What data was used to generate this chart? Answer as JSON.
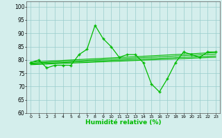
{
  "xlabel": "Humidité relative (%)",
  "background_color": "#d4eeec",
  "grid_color": "#99cccc",
  "line_color": "#00bb00",
  "xlim": [
    -0.5,
    23.5
  ],
  "ylim": [
    60,
    102
  ],
  "yticks": [
    60,
    65,
    70,
    75,
    80,
    85,
    90,
    95,
    100
  ],
  "xticks": [
    0,
    1,
    2,
    3,
    4,
    5,
    6,
    7,
    8,
    9,
    10,
    11,
    12,
    13,
    14,
    15,
    16,
    17,
    18,
    19,
    20,
    21,
    22,
    23
  ],
  "main_line_x": [
    0,
    1,
    2,
    3,
    4,
    5,
    6,
    7,
    8,
    9,
    10,
    11,
    12,
    13,
    14,
    15,
    16,
    17,
    18,
    19,
    20,
    21,
    22,
    23
  ],
  "main_line_y": [
    79,
    80,
    77,
    78,
    78,
    78,
    82,
    84,
    93,
    88,
    85,
    81,
    82,
    82,
    79,
    71,
    68,
    73,
    79,
    83,
    82,
    81,
    83,
    83
  ],
  "regression_lines": [
    {
      "x": [
        0,
        23
      ],
      "y": [
        78.2,
        81.0
      ]
    },
    {
      "x": [
        0,
        23
      ],
      "y": [
        78.5,
        81.5
      ]
    },
    {
      "x": [
        0,
        23
      ],
      "y": [
        78.8,
        82.2
      ]
    },
    {
      "x": [
        0,
        23
      ],
      "y": [
        79.2,
        82.8
      ]
    }
  ]
}
